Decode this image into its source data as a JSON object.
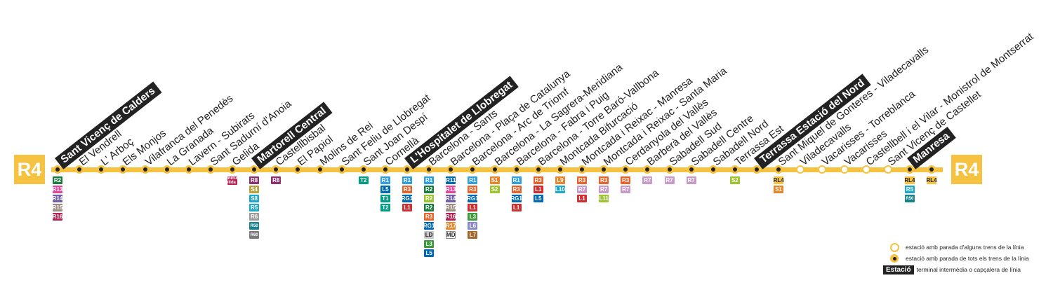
{
  "line": {
    "name": "R4",
    "color": "#F5C242"
  },
  "stations": [
    {
      "name": "Sant Vicenç de Calders",
      "terminal": true,
      "all": true,
      "conn": [
        {
          "l": "R2",
          "s": "Sud",
          "c": "#1B7A3E"
        },
        {
          "l": "R13",
          "c": "#E8449C"
        },
        {
          "l": "R14",
          "c": "#6E5EA8"
        },
        {
          "l": "R15",
          "c": "#9A8B7E"
        },
        {
          "l": "R16",
          "c": "#B52152"
        }
      ]
    },
    {
      "name": "El Vendrell",
      "all": true,
      "conn": []
    },
    {
      "name": "L' Arboç",
      "all": true,
      "conn": []
    },
    {
      "name": "Els Monjos",
      "all": true,
      "conn": []
    },
    {
      "name": "Vilafranca del Penedès",
      "all": true,
      "conn": []
    },
    {
      "name": "La Granada",
      "all": true,
      "conn": []
    },
    {
      "name": "Lavern - Subirats",
      "all": true,
      "conn": []
    },
    {
      "name": "Sant Sadurní d'Anoia",
      "all": true,
      "conn": []
    },
    {
      "name": "Gelida",
      "all": true,
      "conn": [
        {
          "l": "Funicular Gelida",
          "c": "#B52152",
          "small": true
        }
      ]
    },
    {
      "name": "Martorell Central",
      "terminal": true,
      "all": true,
      "conn": [
        {
          "l": "R8",
          "c": "#8C2F6E"
        },
        {
          "l": "S4",
          "c": "#B8A23C"
        },
        {
          "l": "S8",
          "c": "#20A8CB"
        },
        {
          "l": "R5",
          "c": "#20A8CB"
        },
        {
          "l": "R6",
          "c": "#9A9A9A"
        },
        {
          "l": "R50",
          "c": "#15828E",
          "small": true
        },
        {
          "l": "R60",
          "c": "#7A7A7A",
          "small": true
        }
      ]
    },
    {
      "name": "Castellbisbal",
      "all": true,
      "conn": [
        {
          "l": "R8",
          "c": "#8C2F6E"
        }
      ]
    },
    {
      "name": "El Papiol",
      "all": true,
      "conn": []
    },
    {
      "name": "Molins de Rei",
      "all": true,
      "conn": []
    },
    {
      "name": "Sant Feliu de Llobregat",
      "all": true,
      "conn": []
    },
    {
      "name": "Sant Joan Despí",
      "all": true,
      "conn": [
        {
          "l": "T2",
          "c": "#009E84"
        }
      ]
    },
    {
      "name": "Cornellà",
      "all": true,
      "conn": [
        {
          "l": "R1",
          "c": "#2F9FDD"
        },
        {
          "l": "L5",
          "c": "#0069B4"
        },
        {
          "l": "T1",
          "c": "#009E84"
        },
        {
          "l": "T2",
          "c": "#009E84"
        }
      ]
    },
    {
      "name": "L'Hospitalet de Llobregat",
      "terminal": true,
      "all": true,
      "conn": [
        {
          "l": "R1",
          "c": "#2F9FDD"
        },
        {
          "l": "R3",
          "c": "#E8632A"
        },
        {
          "l": "RG1",
          "c": "#0069B4"
        },
        {
          "l": "L1",
          "c": "#D12F2F"
        }
      ]
    },
    {
      "name": "Barcelona - Sants",
      "all": true,
      "conn": [
        {
          "l": "R1",
          "c": "#2F9FDD"
        },
        {
          "l": "R2",
          "c": "#1B7A3E"
        },
        {
          "l": "R2",
          "s": "Nord",
          "c": "#9CC42F"
        },
        {
          "l": "R2",
          "s": "Sud",
          "c": "#1B7A3E"
        },
        {
          "l": "R3",
          "c": "#E8632A"
        },
        {
          "l": "RG1",
          "c": "#0069B4"
        },
        {
          "l": "LD",
          "c": "#C8C8C8",
          "dark": true
        },
        {
          "l": "L3",
          "c": "#3A9A3C"
        },
        {
          "l": "L5",
          "c": "#0069B4"
        }
      ]
    },
    {
      "name": "Barcelona - Plaça de Catalunya",
      "all": true,
      "conn": [
        {
          "l": "R11",
          "c": "#0069B4"
        },
        {
          "l": "R13",
          "c": "#E8449C"
        },
        {
          "l": "R14",
          "c": "#6E5EA8"
        },
        {
          "l": "R15",
          "c": "#9A8B7E"
        },
        {
          "l": "R16",
          "c": "#B52152"
        },
        {
          "l": "R17",
          "c": "#E8852A"
        },
        {
          "l": "MD",
          "c": "#ffffff",
          "outline": true
        }
      ]
    },
    {
      "name": "Barcelona - Arc de Triomf",
      "all": true,
      "conn": [
        {
          "l": "R1",
          "c": "#2F9FDD"
        },
        {
          "l": "R3",
          "c": "#E8632A"
        },
        {
          "l": "RG1",
          "c": "#0069B4"
        },
        {
          "l": "L1",
          "c": "#D12F2F"
        },
        {
          "l": "L3",
          "c": "#3A9A3C"
        },
        {
          "l": "L6",
          "c": "#8A8AC8"
        },
        {
          "l": "L7",
          "c": "#A8642A"
        }
      ]
    },
    {
      "name": "Barcelona - La Sagrera-Meridiana",
      "all": true,
      "conn": [
        {
          "l": "S1",
          "c": "#E8852A"
        },
        {
          "l": "S2",
          "c": "#9CC42F"
        }
      ]
    },
    {
      "name": "Barcelona - Fabra i Puig",
      "all": true,
      "conn": [
        {
          "l": "R1",
          "c": "#2F9FDD"
        },
        {
          "l": "R3",
          "c": "#E8632A"
        },
        {
          "l": "RG1",
          "c": "#0069B4"
        },
        {
          "l": "L1",
          "c": "#D12F2F"
        }
      ]
    },
    {
      "name": "Barcelona - Torre Baró-Vallbona",
      "all": true,
      "conn": [
        {
          "l": "R3",
          "c": "#E8632A"
        },
        {
          "l": "L1",
          "c": "#D12F2F"
        },
        {
          "l": "L5",
          "c": "#0069B4"
        }
      ]
    },
    {
      "name": "Montcada Bifurcació",
      "all": true,
      "conn": [
        {
          "l": "L9",
          "c": "#E8852A"
        },
        {
          "l": "L10",
          "c": "#20A8CB"
        }
      ]
    },
    {
      "name": "Montcada i Reixac - Manresa",
      "all": true,
      "conn": [
        {
          "l": "R3",
          "c": "#E8632A"
        },
        {
          "l": "R7",
          "c": "#C89AC8"
        },
        {
          "l": "L1",
          "c": "#D12F2F"
        }
      ]
    },
    {
      "name": "Montcada i Reixac - Santa Maria",
      "all": true,
      "conn": [
        {
          "l": "R3",
          "c": "#E8632A"
        },
        {
          "l": "R7",
          "c": "#C89AC8"
        },
        {
          "l": "L11",
          "c": "#9CC42F"
        }
      ]
    },
    {
      "name": "Cerdanyola del Vallès",
      "all": true,
      "conn": [
        {
          "l": "R3",
          "c": "#E8632A"
        },
        {
          "l": "R7",
          "c": "#C89AC8"
        }
      ]
    },
    {
      "name": "Barberà del Vallès",
      "all": true,
      "conn": [
        {
          "l": "R7",
          "c": "#C89AC8"
        }
      ]
    },
    {
      "name": "Sabadell Sud",
      "all": true,
      "conn": [
        {
          "l": "R7",
          "c": "#C89AC8"
        }
      ]
    },
    {
      "name": "Sabadell Centre",
      "all": true,
      "conn": [
        {
          "l": "R7",
          "c": "#C89AC8"
        }
      ]
    },
    {
      "name": "Sabadell Nord",
      "all": true,
      "conn": []
    },
    {
      "name": "Terrassa Est",
      "all": true,
      "conn": [
        {
          "l": "S2",
          "c": "#9CC42F"
        }
      ]
    },
    {
      "name": "Terrassa Estació del Nord",
      "terminal": true,
      "all": true,
      "conn": []
    },
    {
      "name": "Sant Miquel de Gonteres - Viladecavalls",
      "all": true,
      "conn": [
        {
          "l": "RL4",
          "c": "#F5C242",
          "dark": true
        },
        {
          "l": "S1",
          "c": "#E8852A"
        }
      ]
    },
    {
      "name": "Viladecavalls",
      "all": false,
      "conn": []
    },
    {
      "name": "Vacarisses - Torreblanca",
      "all": false,
      "conn": []
    },
    {
      "name": "Vacarisses",
      "all": false,
      "conn": []
    },
    {
      "name": "Castellbell i el Vilar - Monistrol de Montserrat",
      "all": false,
      "conn": []
    },
    {
      "name": "Sant Vicenç de Castellet",
      "all": false,
      "conn": []
    },
    {
      "name": "Manresa",
      "terminal": true,
      "all": true,
      "conn": [
        {
          "l": "RL4",
          "c": "#F5C242",
          "dark": true
        },
        {
          "l": "R5",
          "c": "#20A8CB"
        },
        {
          "l": "R50",
          "c": "#15828E",
          "small": true
        }
      ]
    },
    {
      "name": "",
      "all": true,
      "conn": [
        {
          "l": "RL4",
          "c": "#F5C242",
          "dark": true
        }
      ]
    }
  ],
  "legend": {
    "some": "estació amb parada d'alguns trens de la línia",
    "all": "estació amb parada de tots els trens de la línia",
    "term_tag": "Estació",
    "term": "terminal intermèdia o capçalera de línia"
  }
}
